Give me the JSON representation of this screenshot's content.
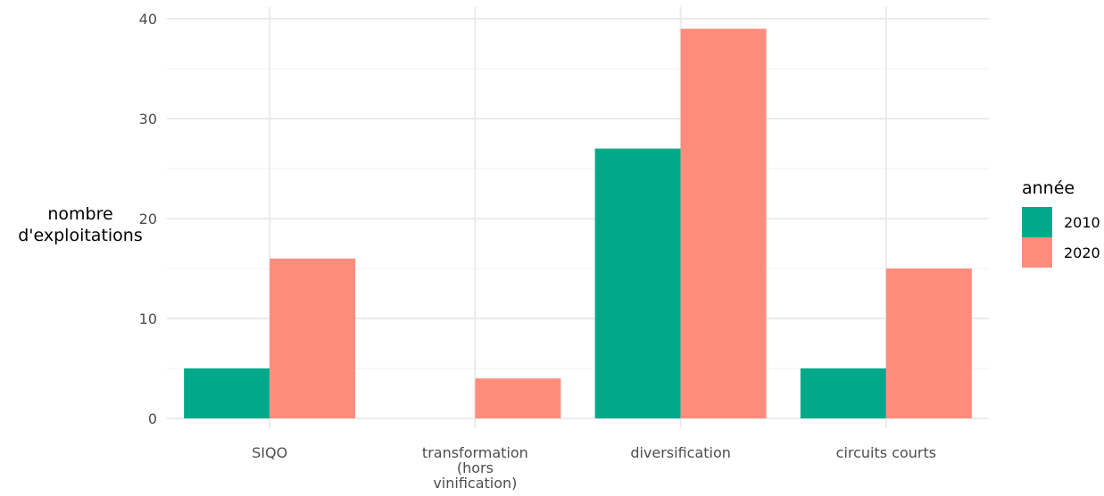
{
  "chart_data": {
    "type": "bar",
    "categories": [
      "SIQO",
      "transformation\n(hors\nvinification)",
      "diversification",
      "circuits courts"
    ],
    "series": [
      {
        "name": "2010",
        "values": [
          5,
          0,
          27,
          5
        ],
        "color": "#00A98A"
      },
      {
        "name": "2020",
        "values": [
          16,
          4,
          39,
          15
        ],
        "color": "#FF8D7E"
      }
    ],
    "xlabel": "",
    "ylabel": "nombre\nd'exploitations",
    "ylim": [
      0,
      40
    ],
    "yticks": [
      0,
      10,
      20,
      30,
      40
    ],
    "grid": true,
    "legend": {
      "title": "année",
      "position": "right"
    }
  }
}
